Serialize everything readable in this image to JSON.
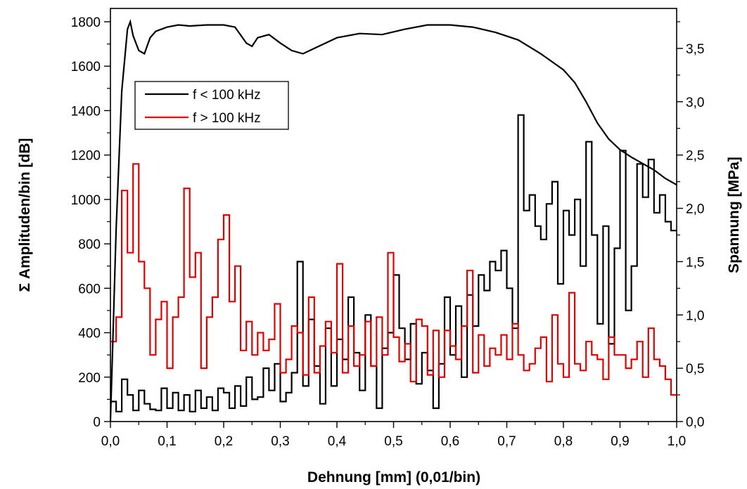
{
  "chart_data": {
    "type": "line",
    "xlabel": "Dehnung [mm] (0,01/bin)",
    "ylabel": "Σ Amplituden/bin [dB]",
    "y2label": "Spannung [MPa]",
    "xlim": [
      0,
      1
    ],
    "ylim": [
      0,
      1860
    ],
    "y2lim": [
      0,
      3.875
    ],
    "x_ticks": [
      "0,0",
      "0,1",
      "0,2",
      "0,3",
      "0,4",
      "0,5",
      "0,6",
      "0,7",
      "0,8",
      "0,9",
      "1,0"
    ],
    "y_ticks": [
      "0",
      "200",
      "400",
      "600",
      "800",
      "1000",
      "1200",
      "1400",
      "1600",
      "1800"
    ],
    "y2_ticks": [
      "0,0",
      "0,5",
      "1,0",
      "1,5",
      "2,0",
      "2,5",
      "3,0",
      "3,5"
    ],
    "grid": false,
    "legend_position": "upper-left",
    "colors": {
      "low": "#000000",
      "high": "#e00000"
    },
    "series": [
      {
        "name": "f < 100 kHz",
        "axis": "left",
        "style": "step",
        "x": [
          0.0,
          0.01,
          0.02,
          0.03,
          0.04,
          0.05,
          0.06,
          0.07,
          0.08,
          0.09,
          0.1,
          0.11,
          0.12,
          0.13,
          0.14,
          0.15,
          0.16,
          0.17,
          0.18,
          0.19,
          0.2,
          0.21,
          0.22,
          0.23,
          0.24,
          0.25,
          0.26,
          0.27,
          0.28,
          0.29,
          0.3,
          0.31,
          0.32,
          0.33,
          0.34,
          0.35,
          0.36,
          0.37,
          0.38,
          0.39,
          0.4,
          0.41,
          0.42,
          0.43,
          0.44,
          0.45,
          0.46,
          0.47,
          0.48,
          0.49,
          0.5,
          0.51,
          0.52,
          0.53,
          0.54,
          0.55,
          0.56,
          0.57,
          0.58,
          0.59,
          0.6,
          0.61,
          0.62,
          0.63,
          0.64,
          0.65,
          0.66,
          0.67,
          0.68,
          0.69,
          0.7,
          0.71,
          0.72,
          0.73,
          0.74,
          0.75,
          0.76,
          0.77,
          0.78,
          0.79,
          0.8,
          0.81,
          0.82,
          0.83,
          0.84,
          0.85,
          0.86,
          0.87,
          0.88,
          0.89,
          0.9,
          0.91,
          0.92,
          0.93,
          0.94,
          0.95,
          0.96,
          0.97,
          0.98,
          0.99
        ],
        "values": [
          90,
          45,
          190,
          120,
          50,
          140,
          80,
          55,
          50,
          150,
          60,
          130,
          50,
          120,
          45,
          140,
          60,
          110,
          50,
          150,
          130,
          60,
          160,
          70,
          200,
          100,
          110,
          240,
          140,
          260,
          90,
          130,
          220,
          720,
          160,
          460,
          250,
          80,
          420,
          160,
          370,
          280,
          560,
          310,
          140,
          480,
          250,
          60,
          330,
          400,
          660,
          420,
          280,
          440,
          170,
          310,
          230,
          60,
          260,
          560,
          300,
          520,
          200,
          570,
          430,
          660,
          590,
          720,
          680,
          770,
          600,
          420,
          1380,
          950,
          1020,
          880,
          820,
          980,
          1080,
          620,
          950,
          840,
          1000,
          700,
          1260,
          840,
          440,
          880,
          350,
          780,
          1220,
          500,
          700,
          1160,
          1010,
          1180,
          940,
          1020,
          900,
          860
        ]
      },
      {
        "name": "f > 100 kHz",
        "axis": "left",
        "style": "step",
        "x": [
          0.0,
          0.01,
          0.02,
          0.03,
          0.04,
          0.05,
          0.06,
          0.07,
          0.08,
          0.09,
          0.1,
          0.11,
          0.12,
          0.13,
          0.14,
          0.15,
          0.16,
          0.17,
          0.18,
          0.19,
          0.2,
          0.21,
          0.22,
          0.23,
          0.24,
          0.25,
          0.26,
          0.27,
          0.28,
          0.29,
          0.3,
          0.31,
          0.32,
          0.33,
          0.34,
          0.35,
          0.36,
          0.37,
          0.38,
          0.39,
          0.4,
          0.41,
          0.42,
          0.43,
          0.44,
          0.45,
          0.46,
          0.47,
          0.48,
          0.49,
          0.5,
          0.51,
          0.52,
          0.53,
          0.54,
          0.55,
          0.56,
          0.57,
          0.58,
          0.59,
          0.6,
          0.61,
          0.62,
          0.63,
          0.64,
          0.65,
          0.66,
          0.67,
          0.68,
          0.69,
          0.7,
          0.71,
          0.72,
          0.73,
          0.74,
          0.75,
          0.76,
          0.77,
          0.78,
          0.79,
          0.8,
          0.81,
          0.82,
          0.83,
          0.84,
          0.85,
          0.86,
          0.87,
          0.88,
          0.89,
          0.9,
          0.91,
          0.92,
          0.93,
          0.94,
          0.95,
          0.96,
          0.97,
          0.98,
          0.99
        ],
        "values": [
          360,
          470,
          1040,
          760,
          1160,
          720,
          600,
          300,
          460,
          540,
          240,
          470,
          560,
          1050,
          650,
          760,
          240,
          470,
          560,
          820,
          930,
          540,
          700,
          320,
          450,
          300,
          400,
          320,
          370,
          530,
          220,
          280,
          430,
          400,
          210,
          560,
          220,
          340,
          450,
          310,
          710,
          220,
          430,
          250,
          300,
          450,
          250,
          470,
          300,
          760,
          380,
          270,
          350,
          180,
          460,
          430,
          210,
          410,
          200,
          410,
          340,
          280,
          430,
          680,
          220,
          390,
          250,
          330,
          300,
          390,
          280,
          440,
          300,
          230,
          260,
          330,
          380,
          180,
          480,
          260,
          200,
          580,
          260,
          230,
          360,
          300,
          280,
          190,
          380,
          300,
          300,
          240,
          280,
          360,
          200,
          420,
          280,
          250,
          190,
          120
        ]
      },
      {
        "name": "",
        "axis": "right",
        "style": "line",
        "x": [
          0.0,
          0.01,
          0.02,
          0.03,
          0.035,
          0.04,
          0.05,
          0.06,
          0.07,
          0.08,
          0.1,
          0.12,
          0.14,
          0.17,
          0.2,
          0.22,
          0.24,
          0.25,
          0.26,
          0.28,
          0.3,
          0.32,
          0.34,
          0.36,
          0.4,
          0.44,
          0.48,
          0.52,
          0.56,
          0.6,
          0.64,
          0.68,
          0.72,
          0.76,
          0.8,
          0.82,
          0.84,
          0.86,
          0.88,
          0.9,
          0.92,
          0.94,
          0.96,
          0.98,
          1.0
        ],
        "values": [
          0.0,
          1.8,
          3.1,
          3.68,
          3.75,
          3.62,
          3.48,
          3.45,
          3.6,
          3.66,
          3.7,
          3.72,
          3.71,
          3.72,
          3.72,
          3.7,
          3.55,
          3.52,
          3.6,
          3.63,
          3.55,
          3.48,
          3.45,
          3.5,
          3.6,
          3.64,
          3.63,
          3.68,
          3.72,
          3.72,
          3.7,
          3.65,
          3.58,
          3.45,
          3.3,
          3.18,
          3.0,
          2.8,
          2.65,
          2.55,
          2.48,
          2.42,
          2.36,
          2.28,
          2.22
        ]
      }
    ]
  }
}
